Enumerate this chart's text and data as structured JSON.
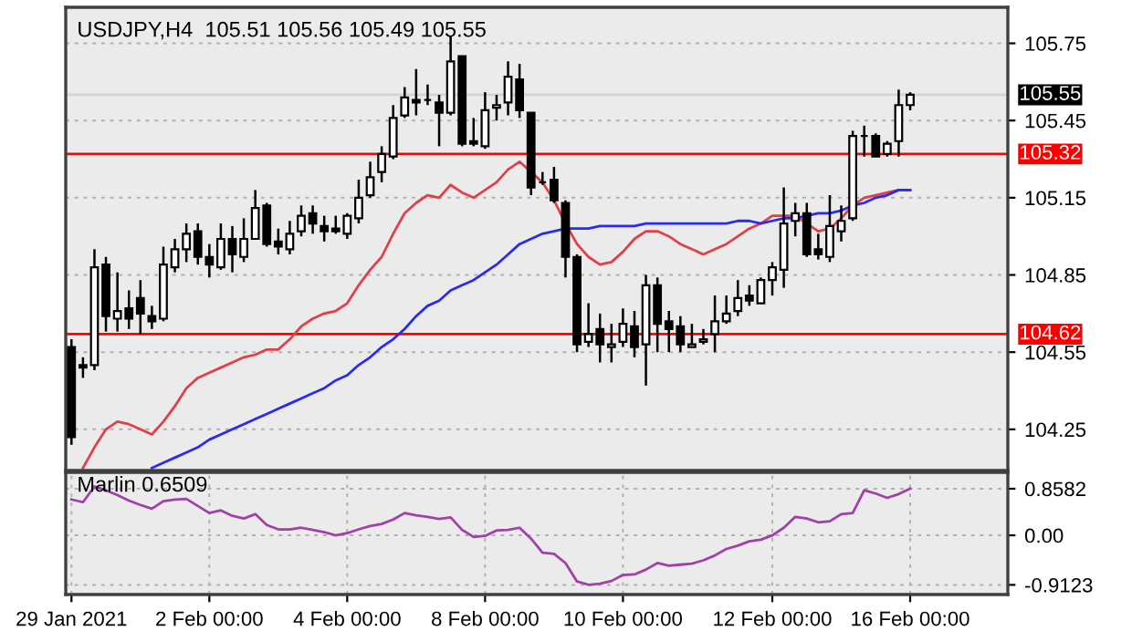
{
  "chart_data": [
    {
      "type": "candlestick",
      "title": "USDJPY,H4  105.51 105.56 105.49 105.55",
      "categories": [
        null,
        null,
        null,
        null,
        null,
        null,
        null,
        null,
        null,
        null,
        null,
        null,
        null,
        null,
        null,
        null,
        null,
        null,
        null,
        null,
        null,
        null,
        null,
        null,
        null,
        null,
        null,
        null,
        null,
        null,
        null,
        null,
        null,
        null,
        null,
        null,
        null,
        null,
        null,
        null,
        null,
        null,
        null,
        null,
        null,
        null,
        null,
        null,
        null,
        null,
        null,
        null,
        null,
        null,
        null,
        null,
        null,
        null,
        null,
        null,
        null,
        null,
        null,
        null,
        null,
        null,
        null,
        null,
        null,
        null,
        null,
        null,
        null,
        null
      ],
      "ohlc": [
        [
          104.57,
          104.6,
          104.19,
          104.22
        ],
        [
          104.5,
          104.53,
          104.45,
          104.49
        ],
        [
          104.5,
          104.95,
          104.48,
          104.88
        ],
        [
          104.89,
          104.92,
          104.63,
          104.69
        ],
        [
          104.68,
          104.86,
          104.63,
          104.71
        ],
        [
          104.72,
          104.79,
          104.64,
          104.68
        ],
        [
          104.76,
          104.83,
          104.62,
          104.7
        ],
        [
          104.69,
          104.73,
          104.64,
          104.67
        ],
        [
          104.68,
          104.96,
          104.67,
          104.89
        ],
        [
          104.88,
          104.99,
          104.86,
          104.95
        ],
        [
          104.95,
          105.05,
          104.9,
          105.01
        ],
        [
          105.02,
          105.05,
          104.89,
          104.92
        ],
        [
          104.92,
          104.97,
          104.84,
          104.89
        ],
        [
          104.88,
          105.05,
          104.87,
          104.99
        ],
        [
          104.99,
          105.04,
          104.86,
          104.93
        ],
        [
          104.92,
          105.07,
          104.9,
          104.99
        ],
        [
          104.99,
          105.18,
          104.99,
          105.11
        ],
        [
          105.12,
          105.13,
          104.96,
          104.97
        ],
        [
          104.98,
          105.03,
          104.93,
          104.96
        ],
        [
          104.95,
          105.06,
          104.93,
          105.01
        ],
        [
          105.02,
          105.12,
          105.0,
          105.08
        ],
        [
          105.09,
          105.12,
          105.01,
          105.05
        ],
        [
          105.04,
          105.08,
          104.98,
          105.02
        ],
        [
          105.03,
          105.08,
          105.01,
          105.02
        ],
        [
          105.01,
          105.09,
          104.99,
          105.08
        ],
        [
          105.07,
          105.22,
          105.05,
          105.15
        ],
        [
          105.16,
          105.29,
          105.15,
          105.23
        ],
        [
          105.25,
          105.35,
          105.21,
          105.32
        ],
        [
          105.31,
          105.51,
          105.3,
          105.46
        ],
        [
          105.47,
          105.58,
          105.46,
          105.54
        ],
        [
          105.53,
          105.65,
          105.47,
          105.52
        ],
        [
          105.53,
          105.59,
          105.51,
          105.53
        ],
        [
          105.52,
          105.55,
          105.35,
          105.48
        ],
        [
          105.48,
          105.78,
          105.47,
          105.68
        ],
        [
          105.7,
          105.7,
          105.35,
          105.36
        ],
        [
          105.37,
          105.46,
          105.35,
          105.36
        ],
        [
          105.35,
          105.56,
          105.34,
          105.49
        ],
        [
          105.5,
          105.55,
          105.45,
          105.51
        ],
        [
          105.52,
          105.68,
          105.47,
          105.62
        ],
        [
          105.61,
          105.67,
          105.46,
          105.49
        ],
        [
          105.48,
          105.48,
          105.16,
          105.19
        ],
        [
          105.21,
          105.25,
          105.2,
          105.21
        ],
        [
          105.22,
          105.27,
          105.13,
          105.14
        ],
        [
          105.13,
          105.14,
          104.84,
          104.92
        ],
        [
          104.92,
          104.93,
          104.55,
          104.58
        ],
        [
          104.59,
          104.74,
          104.57,
          104.62
        ],
        [
          104.64,
          104.7,
          104.51,
          104.58
        ],
        [
          104.57,
          104.66,
          104.51,
          104.58
        ],
        [
          104.59,
          104.72,
          104.57,
          104.66
        ],
        [
          104.65,
          104.71,
          104.53,
          104.57
        ],
        [
          104.58,
          104.85,
          104.42,
          104.81
        ],
        [
          104.81,
          104.84,
          104.55,
          104.66
        ],
        [
          104.67,
          104.71,
          104.55,
          104.64
        ],
        [
          104.65,
          104.69,
          104.55,
          104.58
        ],
        [
          104.57,
          104.66,
          104.57,
          104.58
        ],
        [
          104.59,
          104.64,
          104.58,
          104.6
        ],
        [
          104.62,
          104.77,
          104.55,
          104.67
        ],
        [
          104.67,
          104.77,
          104.66,
          104.7
        ],
        [
          104.71,
          104.83,
          104.69,
          104.76
        ],
        [
          104.77,
          104.81,
          104.73,
          104.75
        ],
        [
          104.74,
          104.84,
          104.74,
          104.83
        ],
        [
          104.83,
          104.9,
          104.77,
          104.88
        ],
        [
          104.87,
          105.19,
          104.8,
          105.05
        ],
        [
          105.06,
          105.13,
          105.0,
          105.09
        ],
        [
          105.09,
          105.13,
          104.92,
          104.93
        ],
        [
          104.95,
          105.01,
          104.91,
          104.93
        ],
        [
          104.92,
          105.16,
          104.9,
          105.04
        ],
        [
          105.02,
          105.12,
          104.98,
          105.06
        ],
        [
          105.07,
          105.41,
          105.06,
          105.39
        ],
        [
          105.39,
          105.43,
          105.31,
          105.39
        ],
        [
          105.39,
          105.4,
          105.31,
          105.31
        ],
        [
          105.32,
          105.37,
          105.31,
          105.36
        ],
        [
          105.37,
          105.57,
          105.31,
          105.51
        ],
        [
          105.51,
          105.56,
          105.49,
          105.55
        ]
      ],
      "series": [
        {
          "type": "line",
          "color": "#e0404a",
          "values": [
            null,
            104.1,
            104.18,
            104.25,
            104.28,
            104.27,
            104.25,
            104.23,
            104.28,
            104.34,
            104.41,
            104.45,
            104.47,
            104.49,
            104.51,
            104.53,
            104.54,
            104.56,
            104.56,
            104.6,
            104.65,
            104.68,
            104.7,
            104.71,
            104.74,
            104.81,
            104.87,
            104.92,
            105.01,
            105.09,
            105.13,
            105.16,
            105.15,
            105.2,
            105.17,
            105.15,
            105.18,
            105.21,
            105.26,
            105.29,
            105.25,
            105.21,
            105.14,
            105.05,
            104.97,
            104.92,
            104.89,
            104.9,
            104.94,
            104.99,
            105.02,
            105.02,
            105.0,
            104.97,
            104.95,
            104.93,
            104.95,
            104.97,
            105.0,
            105.03,
            105.05,
            105.08,
            105.08,
            105.08,
            105.05,
            105.02,
            105.03,
            105.07,
            105.12,
            105.15,
            105.16,
            105.17,
            105.18,
            105.18
          ]
        },
        {
          "type": "line",
          "color": "#2a2af0",
          "values": [
            null,
            null,
            null,
            null,
            null,
            null,
            null,
            104.1,
            104.12,
            104.14,
            104.16,
            104.18,
            104.21,
            104.23,
            104.25,
            104.27,
            104.29,
            104.31,
            104.33,
            104.35,
            104.37,
            104.39,
            104.41,
            104.44,
            104.46,
            104.5,
            104.53,
            104.57,
            104.6,
            104.64,
            104.69,
            104.73,
            104.75,
            104.79,
            104.81,
            104.83,
            104.86,
            104.89,
            104.93,
            104.97,
            104.99,
            105.01,
            105.02,
            105.03,
            105.03,
            105.03,
            105.04,
            105.04,
            105.04,
            105.04,
            105.05,
            105.05,
            105.05,
            105.05,
            105.05,
            105.05,
            105.05,
            105.05,
            105.06,
            105.06,
            105.05,
            105.06,
            105.07,
            105.07,
            105.08,
            105.09,
            105.09,
            105.1,
            105.12,
            105.13,
            105.15,
            105.16,
            105.18,
            105.18
          ]
        }
      ],
      "ylim": [
        104.09,
        105.89
      ],
      "yticks": [
        104.25,
        104.55,
        104.85,
        105.15,
        105.45,
        105.75
      ],
      "ref_lines": [
        {
          "axis": "y",
          "value": 105.55,
          "label": "105.55",
          "color": "#d4d4d4"
        },
        {
          "axis": "y",
          "value": 105.32,
          "label": "105.32",
          "color": "#ff0000"
        },
        {
          "axis": "y",
          "value": 104.62,
          "label": "104.62",
          "color": "#ff0000"
        }
      ],
      "grid": true,
      "tick_labels": "y"
    },
    {
      "type": "line",
      "title": "Marlin 0.6509",
      "categories": [
        "29 Jan 2021",
        null,
        null,
        null,
        null,
        null,
        null,
        null,
        null,
        null,
        null,
        null,
        "2 Feb 00:00",
        null,
        null,
        null,
        null,
        null,
        null,
        null,
        null,
        null,
        null,
        null,
        "4 Feb 00:00",
        null,
        null,
        null,
        null,
        null,
        null,
        null,
        null,
        null,
        null,
        null,
        "8 Feb 00:00",
        null,
        null,
        null,
        null,
        null,
        null,
        null,
        null,
        null,
        null,
        null,
        "10 Feb 00:00",
        null,
        null,
        null,
        null,
        null,
        null,
        null,
        null,
        null,
        null,
        null,
        null,
        "12 Feb 00:00",
        null,
        null,
        null,
        null,
        null,
        null,
        null,
        null,
        null,
        null,
        null,
        "16 Feb 00:00"
      ],
      "series": [
        {
          "color": "#a040a8",
          "values": [
            0.66,
            0.61,
            0.9,
            0.83,
            0.74,
            0.64,
            0.56,
            0.49,
            0.63,
            0.66,
            0.67,
            0.54,
            0.41,
            0.46,
            0.36,
            0.31,
            0.39,
            0.19,
            0.11,
            0.11,
            0.14,
            0.1,
            0.06,
            0.0,
            0.04,
            0.11,
            0.17,
            0.21,
            0.29,
            0.41,
            0.37,
            0.34,
            0.3,
            0.33,
            0.1,
            -0.03,
            -0.01,
            0.09,
            0.1,
            0.14,
            -0.06,
            -0.32,
            -0.34,
            -0.51,
            -0.85,
            -0.91,
            -0.89,
            -0.84,
            -0.73,
            -0.72,
            -0.63,
            -0.51,
            -0.56,
            -0.54,
            -0.52,
            -0.46,
            -0.37,
            -0.25,
            -0.19,
            -0.11,
            -0.08,
            0.0,
            0.14,
            0.34,
            0.31,
            0.24,
            0.26,
            0.39,
            0.41,
            0.83,
            0.77,
            0.69,
            0.76,
            0.86
          ]
        }
      ],
      "ylim": [
        -1.09,
        1.16
      ],
      "yticks": [
        -0.9123,
        {
          "value": 0,
          "label": "0.00"
        },
        0.8582
      ],
      "grid": true
    }
  ]
}
